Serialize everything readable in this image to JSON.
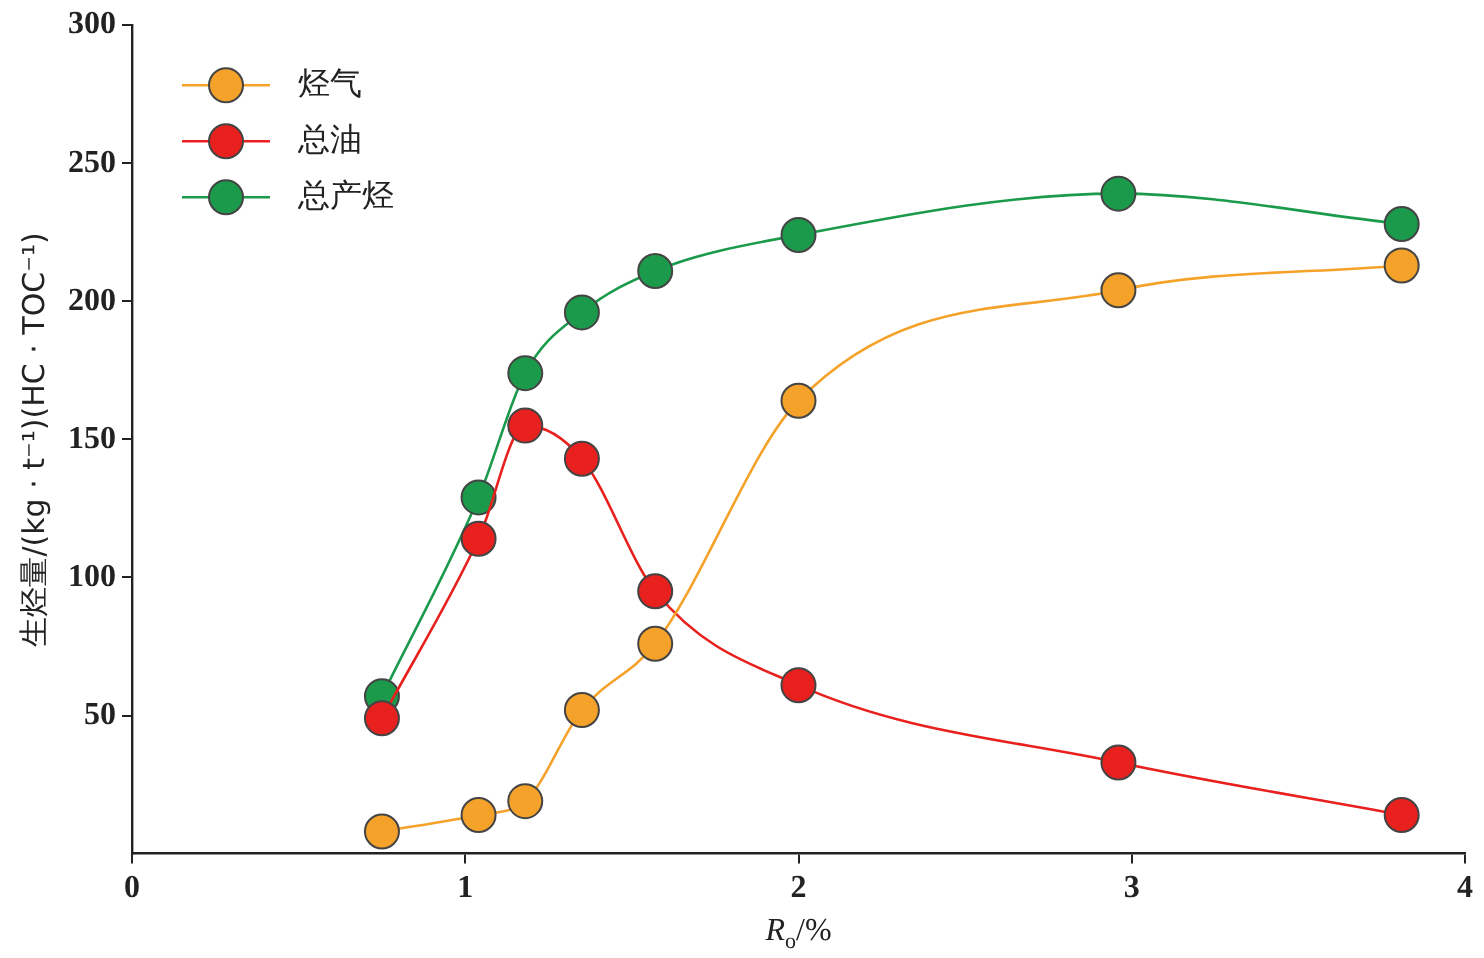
{
  "chart_data": {
    "type": "line",
    "xlabel": "R$_{o}$/%",
    "ylabel": "生烃量/(kg · t⁻¹)(HC · TOC⁻¹)",
    "xlim": [
      0,
      4
    ],
    "xticks": [
      0,
      1,
      2,
      3,
      4
    ],
    "ylim": [
      0,
      300
    ],
    "yticks": [
      50,
      100,
      150,
      200,
      250,
      300
    ],
    "marker": "circle",
    "legend": "top left",
    "grid": false,
    "series": [
      {
        "name": "烃气",
        "color": "#f5a22a",
        "x": [
          0.75,
          1.04,
          1.18,
          1.35,
          1.57,
          2.0,
          2.96,
          3.81
        ],
        "values": [
          8,
          14,
          19,
          52,
          76,
          164,
          204,
          213
        ]
      },
      {
        "name": "总油",
        "color": "#e8201e",
        "x": [
          0.75,
          1.04,
          1.18,
          1.35,
          1.57,
          2.0,
          2.96,
          3.81
        ],
        "values": [
          49,
          114,
          155,
          143,
          95,
          61,
          33,
          14
        ]
      },
      {
        "name": "总产烃",
        "color": "#1a9a4a",
        "x": [
          0.75,
          1.04,
          1.18,
          1.35,
          1.57,
          2.0,
          2.96,
          3.81
        ],
        "values": [
          57,
          129,
          174,
          196,
          211,
          224,
          239,
          228
        ]
      }
    ]
  }
}
